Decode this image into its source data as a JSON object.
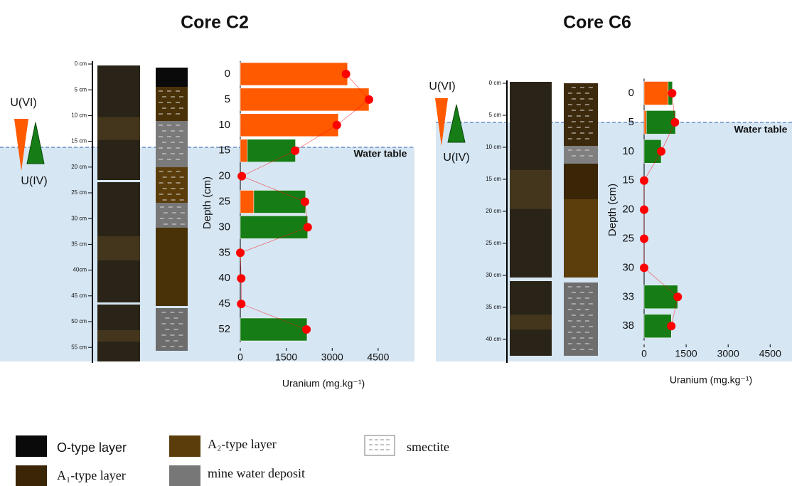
{
  "chart_data": [
    {
      "type": "bar",
      "title": "Core C2",
      "y_label": "Depth (cm)",
      "x_label": "Uranium (mg.kg⁻¹)",
      "annotation": "Water table",
      "categories": [
        "0",
        "5",
        "10",
        "15",
        "20",
        "25",
        "30",
        "35",
        "40",
        "45",
        "52"
      ],
      "series": [
        {
          "name": "U(VI)",
          "color": "#ff5a00",
          "values": [
            3500,
            4200,
            3200,
            230,
            null,
            440,
            null,
            null,
            null,
            null,
            null
          ]
        },
        {
          "name": "U(IV)",
          "color": "#167d16",
          "values": [
            null,
            null,
            null,
            1570,
            null,
            1690,
            2200,
            null,
            null,
            null,
            2180
          ]
        }
      ],
      "totals": {
        "color": "#ff0000",
        "values": [
          3450,
          4200,
          3150,
          1790,
          50,
          2110,
          2200,
          0,
          30,
          30,
          2160
        ]
      },
      "xlim": [
        0,
        5500
      ],
      "xticks": [
        0,
        1500,
        3000,
        4500
      ],
      "core_scale": [
        "0 cm",
        "5 cm",
        "10 cm",
        "15 cm",
        "20 cm",
        "25 cm",
        "30 cm",
        "35 cm",
        "40cm",
        "45 cm",
        "50 cm",
        "55 cm"
      ]
    },
    {
      "type": "bar",
      "title": "Core C6",
      "y_label": "Depth (cm)",
      "x_label": "Uranium (mg.kg⁻¹)",
      "annotation": "Water table",
      "categories": [
        "0",
        "5",
        "10",
        "15",
        "20",
        "25",
        "30",
        "33",
        "38"
      ],
      "series": [
        {
          "name": "U(VI)",
          "color": "#ff5a00",
          "values": [
            860,
            80,
            null,
            null,
            null,
            null,
            null,
            null,
            null
          ]
        },
        {
          "name": "U(IV)",
          "color": "#167d16",
          "values": [
            150,
            1040,
            610,
            null,
            null,
            null,
            null,
            1200,
            970
          ]
        }
      ],
      "totals": {
        "color": "#ff0000",
        "values": [
          1000,
          1100,
          610,
          0,
          0,
          0,
          0,
          1200,
          970
        ]
      },
      "xlim": [
        0,
        5000
      ],
      "xticks": [
        0,
        1500,
        3000,
        4500
      ],
      "core_scale": [
        "0 cm",
        "5 cm",
        "10 cm",
        "15 cm",
        "20 cm",
        "25 cm",
        "30 cm",
        "35 cm",
        "40 cm"
      ]
    }
  ],
  "layer_legend": [
    "O-type layer",
    "A₁-type layer",
    "A₂-type layer",
    "mine water deposit",
    "smectite"
  ]
}
